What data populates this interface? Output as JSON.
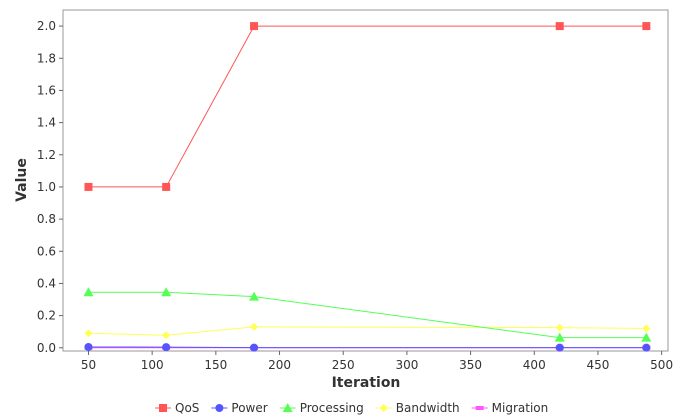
{
  "chart_data": {
    "type": "line",
    "xlabel": "Iteration",
    "ylabel": "Value",
    "xlim": [
      30,
      505
    ],
    "ylim": [
      -0.02,
      2.1
    ],
    "xticks": [
      50,
      100,
      150,
      200,
      250,
      300,
      350,
      400,
      450,
      500
    ],
    "yticks": [
      "0.0",
      "0.2",
      "0.4",
      "0.6",
      "0.8",
      "1.0",
      "1.2",
      "1.4",
      "1.6",
      "1.8",
      "2.0"
    ],
    "grid": false,
    "legend_position": "bottom",
    "x": [
      50,
      111,
      180,
      420,
      488
    ],
    "series": [
      {
        "name": "QoS",
        "color": "#ff5555",
        "marker": "square",
        "values": [
          1.0,
          1.0,
          2.0,
          2.0,
          2.0
        ]
      },
      {
        "name": "Power",
        "color": "#5555ff",
        "marker": "circle",
        "values": [
          0.005,
          0.004,
          0.001,
          0.001,
          0.001
        ]
      },
      {
        "name": "Processing",
        "color": "#55ff55",
        "marker": "triangle",
        "values": [
          0.345,
          0.345,
          0.318,
          0.063,
          0.063
        ]
      },
      {
        "name": "Bandwidth",
        "color": "#ffff55",
        "marker": "diamond",
        "values": [
          0.09,
          0.078,
          0.13,
          0.125,
          0.12
        ]
      },
      {
        "name": "Migration",
        "color": "#ff55ff",
        "marker": "rect",
        "values": [
          0.0,
          0.0,
          0.0,
          0.0,
          0.0
        ]
      }
    ]
  }
}
